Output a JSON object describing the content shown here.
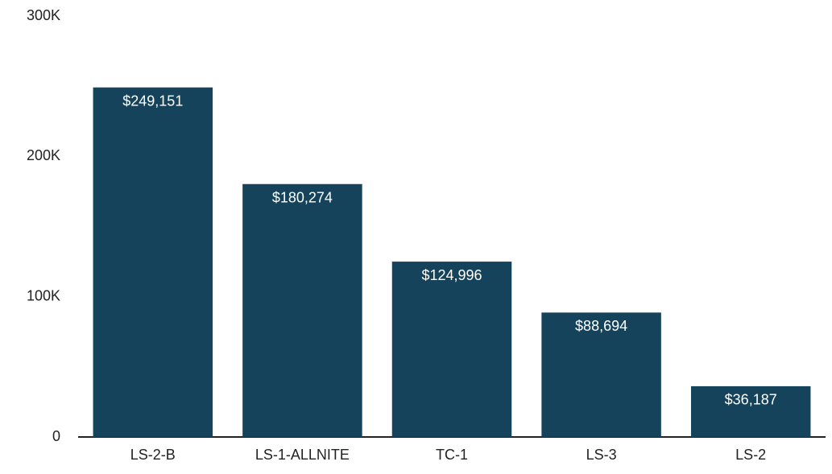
{
  "chart_data": {
    "type": "bar",
    "categories": [
      "LS-2-B",
      "LS-1-ALLNITE",
      "TC-1",
      "LS-3",
      "LS-2"
    ],
    "values": [
      249151,
      180274,
      124996,
      88694,
      36187
    ],
    "value_labels": [
      "$249,151",
      "$180,274",
      "$124,996",
      "$88,694",
      "$36,187"
    ],
    "color": "#15435b",
    "ylim": [
      0,
      300000
    ],
    "yticks": [
      0,
      {
        "value": 100000,
        "label": "100K"
      },
      {
        "value": 200000,
        "label": "200K"
      },
      {
        "value": 300000,
        "label": "300K"
      }
    ],
    "grid": false
  }
}
